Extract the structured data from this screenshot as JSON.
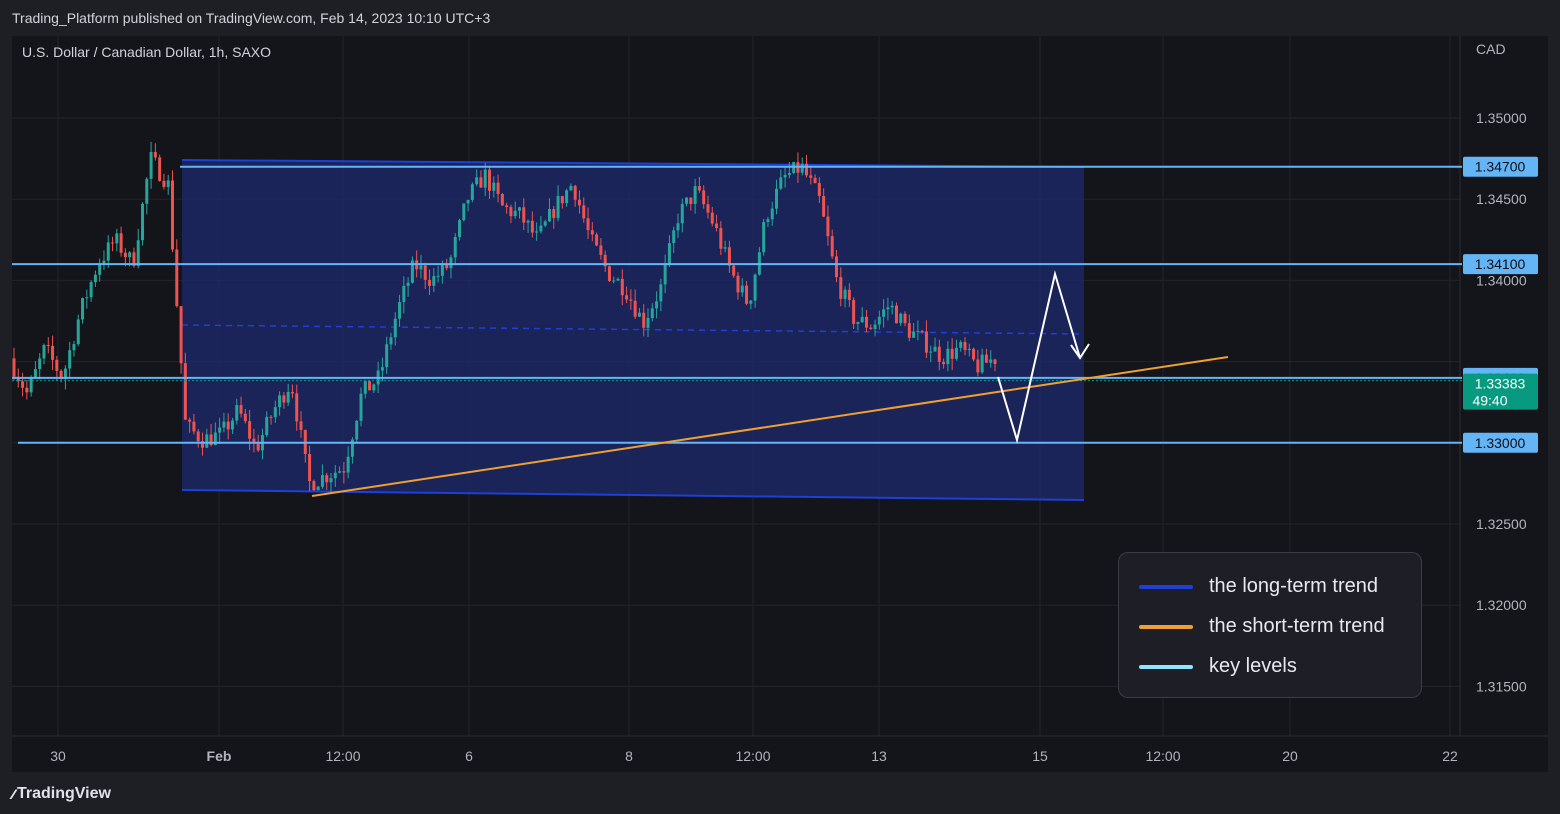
{
  "header": {
    "published": "Trading_Platform published on TradingView.com, Feb 14, 2023 10:10 UTC+3"
  },
  "footer": {
    "brand": "TradingView",
    "logo_icon": "tradingview-logo-icon"
  },
  "chart_data": {
    "type": "candlestick",
    "symbol": "U.S. Dollar / Canadian Dollar, 1h, SAXO",
    "currency": "CAD",
    "ylim": [
      1.3115,
      1.3522
    ],
    "y_ticks": [
      "1.35000",
      "1.34500",
      "1.34000",
      "1.32500",
      "1.32000",
      "1.31500"
    ],
    "x_ticks": [
      "30",
      "Feb",
      "12:00",
      "6",
      "8",
      "12:00",
      "13",
      "15",
      "12:00",
      "20",
      "22"
    ],
    "grid": true,
    "colors": {
      "up": "#26a69a",
      "down": "#ef5350",
      "long_term_trend": "#1e3fd8",
      "short_term_trend": "#f0a030",
      "key_level": "#64b5f6",
      "projection": "#ffffff",
      "channel_fill": "#1c2a6e",
      "current_price": "#089981"
    },
    "key_levels": [
      {
        "price": 1.347,
        "label": "1.34700"
      },
      {
        "price": 1.341,
        "label": "1.34100"
      },
      {
        "price": 1.334,
        "label": "1.33400"
      },
      {
        "price": 1.33,
        "label": "1.33000"
      }
    ],
    "current_price": {
      "price": 1.33383,
      "label": "1.33383",
      "countdown": "49:40"
    },
    "price_path": [
      1.3352,
      1.333,
      1.3358,
      1.334,
      1.338,
      1.341,
      1.3425,
      1.341,
      1.3475,
      1.346,
      1.331,
      1.3302,
      1.3305,
      1.332,
      1.3296,
      1.332,
      1.3338,
      1.3275,
      1.328,
      1.3285,
      1.333,
      1.334,
      1.338,
      1.341,
      1.34,
      1.341,
      1.345,
      1.3465,
      1.3445,
      1.344,
      1.3425,
      1.3445,
      1.346,
      1.3425,
      1.3405,
      1.3395,
      1.3374,
      1.3395,
      1.344,
      1.3455,
      1.3435,
      1.3405,
      1.3385,
      1.344,
      1.3463,
      1.347,
      1.345,
      1.34,
      1.3376,
      1.3372,
      1.3385,
      1.337,
      1.3362,
      1.3353,
      1.3358,
      1.3347,
      1.3352
    ]
  },
  "legend": {
    "items": [
      {
        "label": "the long-term trend",
        "color": "#1e3fd8"
      },
      {
        "label": "the short-term trend",
        "color": "#f0a030"
      },
      {
        "label": "key levels",
        "color": "#8fe4ff"
      }
    ]
  }
}
